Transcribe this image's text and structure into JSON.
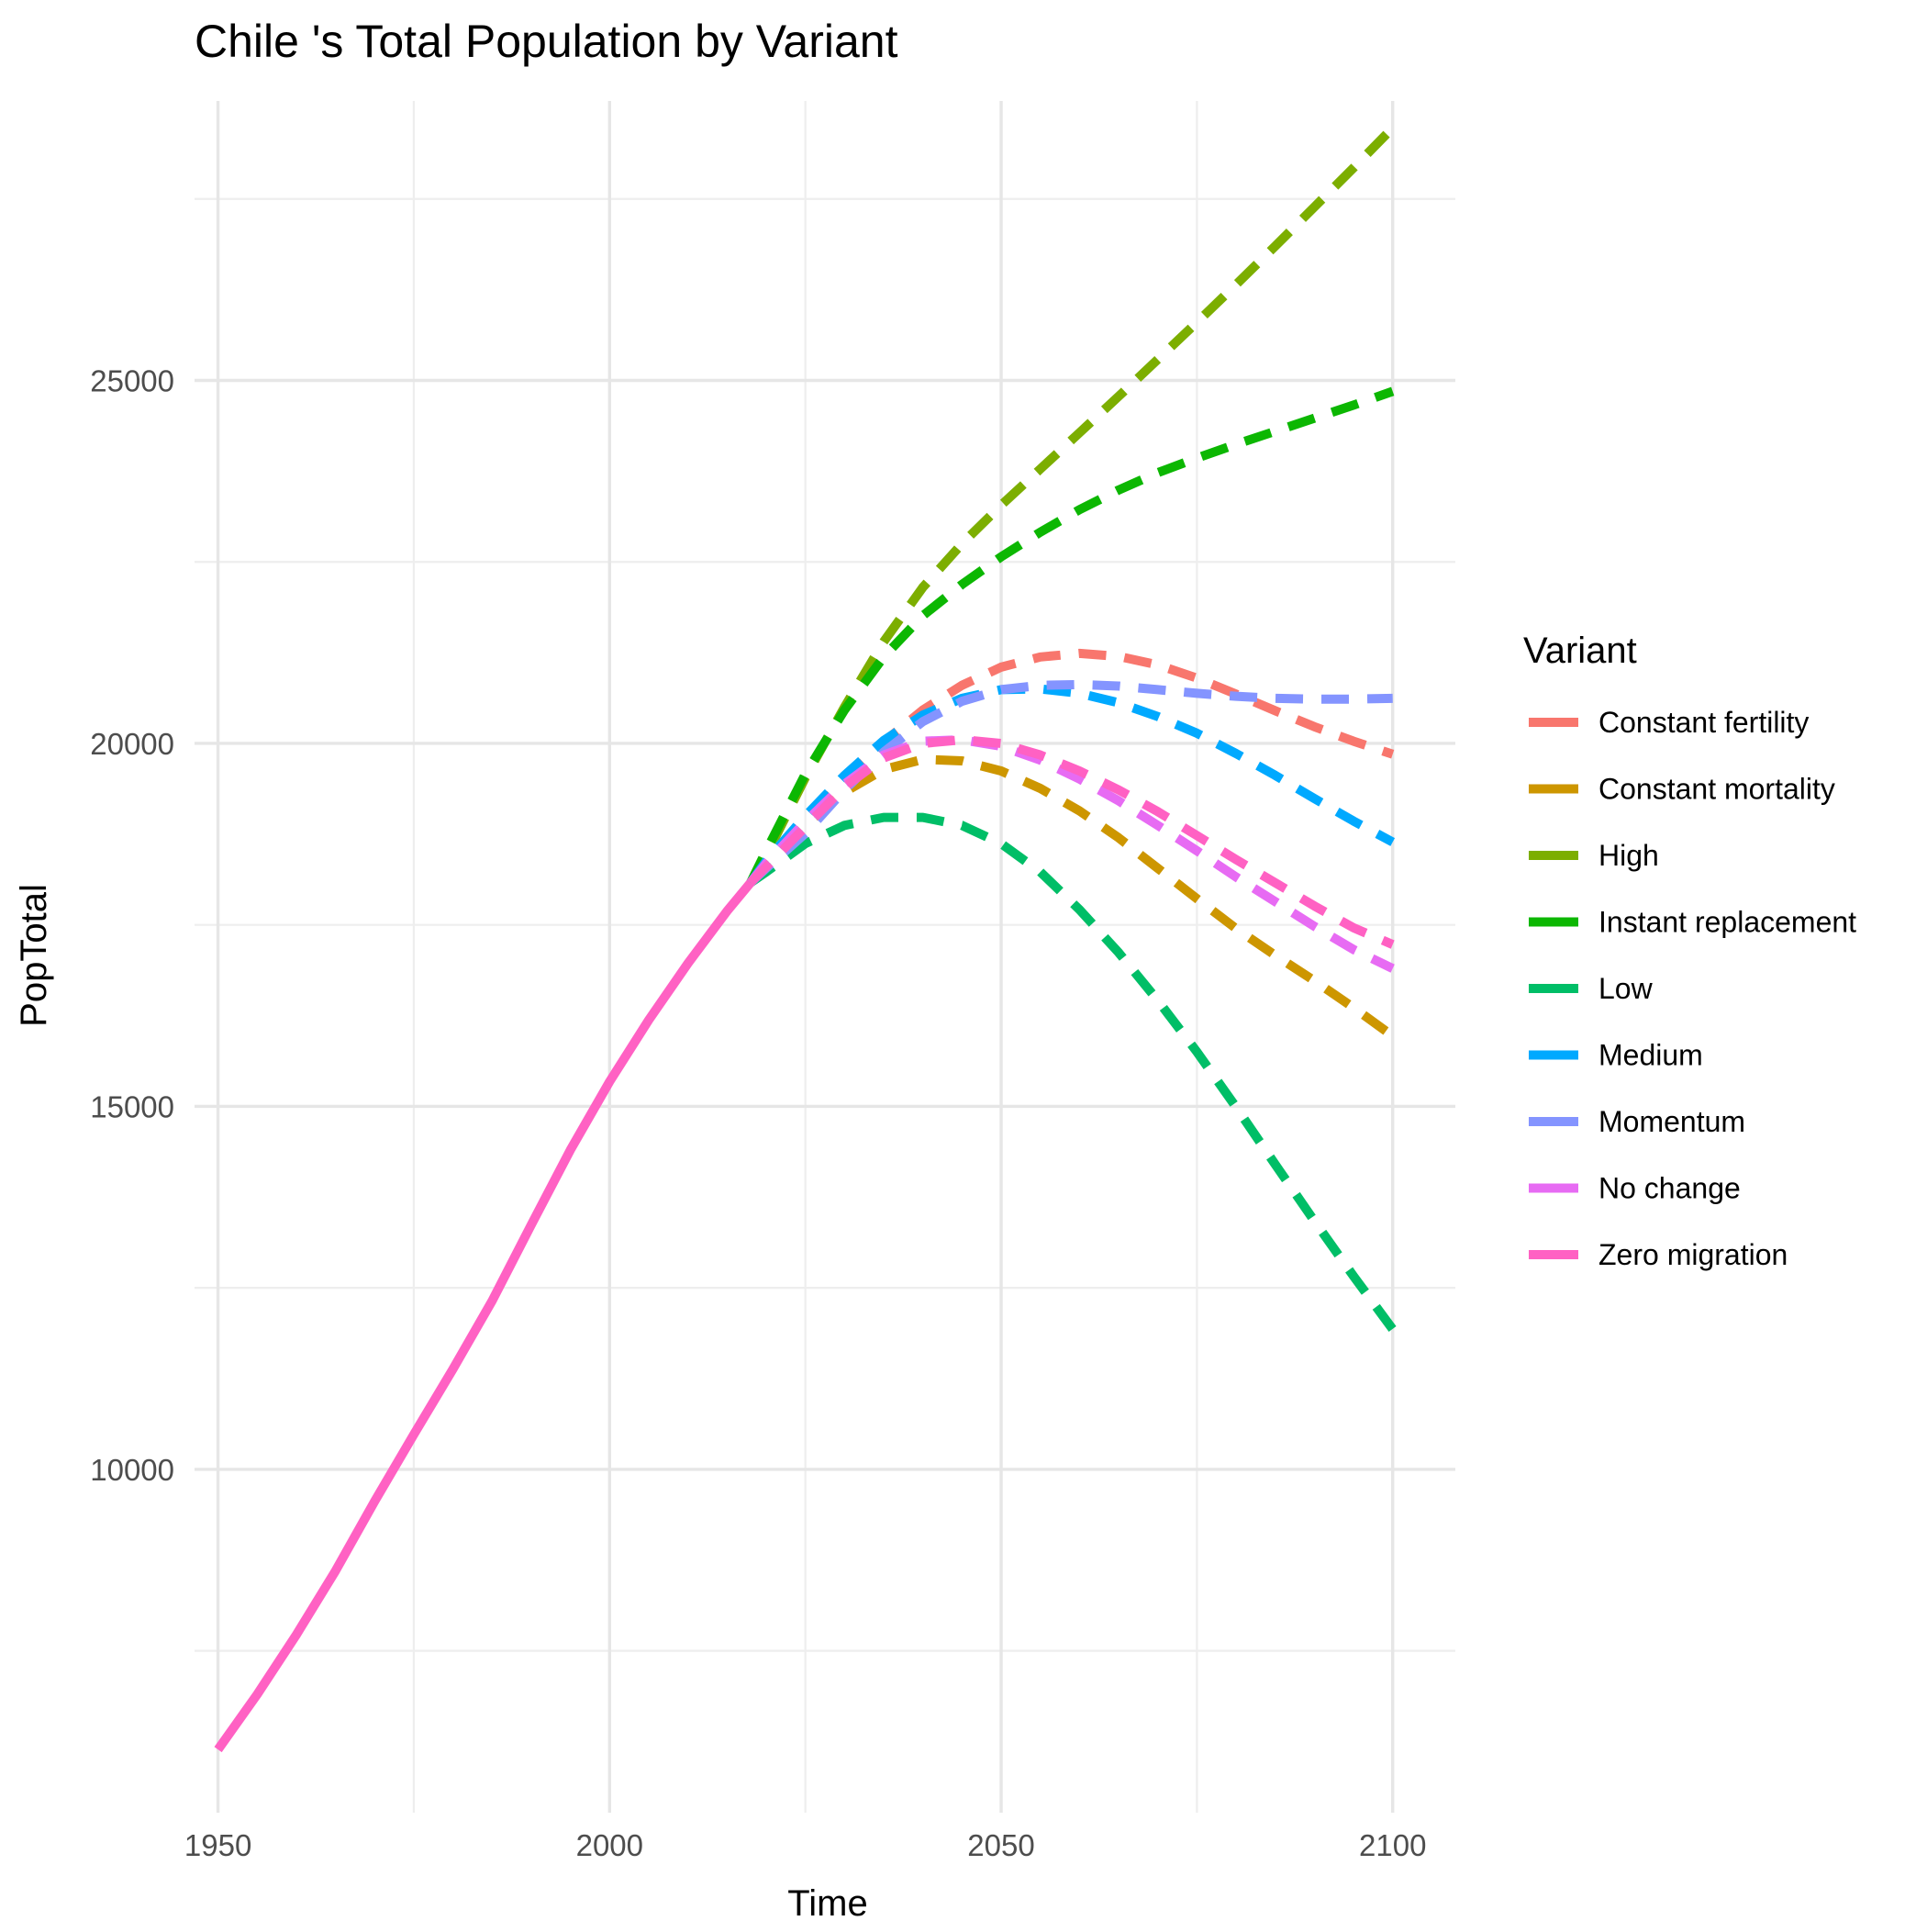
{
  "chart_data": {
    "type": "line",
    "title": "Chile 's Total Population by Variant",
    "xlabel": "Time",
    "ylabel": "PopTotal",
    "xlim": [
      1947,
      2108
    ],
    "ylim": [
      5270,
      28850
    ],
    "x_ticks": [
      1950,
      2000,
      2050,
      2100
    ],
    "x_tick_labels": [
      "1950",
      "2000",
      "2050",
      "2100"
    ],
    "y_ticks": [
      10000,
      15000,
      20000,
      25000
    ],
    "y_tick_labels": [
      "10000",
      "15000",
      "20000",
      "25000"
    ],
    "grid": true,
    "legend": {
      "title": "Variant",
      "position": "right"
    },
    "historical_color": "#FF61C3",
    "historical": {
      "x": [
        1950,
        1955,
        1960,
        1965,
        1970,
        1975,
        1980,
        1985,
        1990,
        1995,
        2000,
        2005,
        2010,
        2015,
        2018
      ],
      "y": [
        6140,
        6900,
        7720,
        8600,
        9560,
        10480,
        11380,
        12320,
        13370,
        14400,
        15340,
        16190,
        16970,
        17690,
        18080
      ]
    },
    "series": [
      {
        "name": "Constant fertility",
        "color": "#F8766D",
        "x": [
          2018,
          2020,
          2025,
          2030,
          2035,
          2040,
          2045,
          2050,
          2055,
          2060,
          2065,
          2070,
          2075,
          2080,
          2085,
          2090,
          2095,
          2100
        ],
        "y": [
          18080,
          18350,
          18950,
          19500,
          20020,
          20460,
          20800,
          21050,
          21190,
          21240,
          21200,
          21080,
          20900,
          20680,
          20450,
          20230,
          20030,
          19850
        ]
      },
      {
        "name": "Constant mortality",
        "color": "#CD9600",
        "x": [
          2018,
          2020,
          2025,
          2030,
          2035,
          2040,
          2045,
          2050,
          2055,
          2060,
          2065,
          2070,
          2075,
          2080,
          2085,
          2090,
          2095,
          2100
        ],
        "y": [
          18080,
          18320,
          18880,
          19330,
          19640,
          19780,
          19760,
          19620,
          19380,
          19070,
          18700,
          18280,
          17860,
          17450,
          17080,
          16730,
          16360,
          15970
        ]
      },
      {
        "name": "High",
        "color": "#7CAE00",
        "x": [
          2018,
          2020,
          2025,
          2030,
          2035,
          2040,
          2045,
          2050,
          2055,
          2060,
          2065,
          2070,
          2075,
          2080,
          2085,
          2090,
          2095,
          2100
        ],
        "y": [
          18080,
          18460,
          19530,
          20500,
          21400,
          22150,
          22750,
          23280,
          23780,
          24280,
          24780,
          25290,
          25800,
          26320,
          26850,
          27390,
          27930,
          28480
        ]
      },
      {
        "name": "Instant replacement",
        "color": "#0CB702",
        "x": [
          2018,
          2020,
          2025,
          2030,
          2035,
          2040,
          2045,
          2050,
          2055,
          2060,
          2065,
          2070,
          2075,
          2080,
          2085,
          2090,
          2095,
          2100
        ],
        "y": [
          18080,
          18520,
          19580,
          20460,
          21190,
          21760,
          22190,
          22570,
          22910,
          23220,
          23490,
          23730,
          23930,
          24120,
          24300,
          24480,
          24660,
          24850
        ]
      },
      {
        "name": "Low",
        "color": "#00BE67",
        "x": [
          2018,
          2020,
          2025,
          2030,
          2035,
          2040,
          2045,
          2050,
          2055,
          2060,
          2065,
          2070,
          2075,
          2080,
          2085,
          2090,
          2095,
          2100
        ],
        "y": [
          18080,
          18230,
          18620,
          18870,
          18980,
          18980,
          18870,
          18620,
          18230,
          17710,
          17120,
          16460,
          15750,
          14990,
          14200,
          13420,
          12660,
          11930
        ]
      },
      {
        "name": "Medium",
        "color": "#00A9FF",
        "x": [
          2018,
          2020,
          2025,
          2030,
          2035,
          2040,
          2045,
          2050,
          2055,
          2060,
          2065,
          2070,
          2075,
          2080,
          2085,
          2090,
          2095,
          2100
        ],
        "y": [
          18080,
          18380,
          19000,
          19560,
          20040,
          20390,
          20620,
          20740,
          20750,
          20690,
          20560,
          20370,
          20140,
          19860,
          19560,
          19240,
          18930,
          18640
        ]
      },
      {
        "name": "Momentum",
        "color": "#8494FF",
        "x": [
          2018,
          2020,
          2025,
          2030,
          2035,
          2040,
          2045,
          2050,
          2055,
          2060,
          2065,
          2070,
          2075,
          2080,
          2085,
          2090,
          2095,
          2100
        ],
        "y": [
          18080,
          18280,
          18760,
          19360,
          19880,
          20300,
          20580,
          20740,
          20800,
          20810,
          20790,
          20740,
          20690,
          20650,
          20620,
          20610,
          20610,
          20620
        ]
      },
      {
        "name": "No change",
        "color": "#E76BF3",
        "x": [
          2018,
          2020,
          2025,
          2030,
          2035,
          2040,
          2045,
          2050,
          2055,
          2060,
          2065,
          2070,
          2075,
          2080,
          2085,
          2090,
          2095,
          2100
        ],
        "y": [
          18080,
          18350,
          18920,
          19440,
          19840,
          20030,
          20050,
          19960,
          19770,
          19510,
          19210,
          18870,
          18520,
          18160,
          17820,
          17480,
          17160,
          16900
        ]
      },
      {
        "name": "Zero migration",
        "color": "#FF61C3",
        "x": [
          2018,
          2020,
          2025,
          2030,
          2035,
          2040,
          2045,
          2050,
          2055,
          2060,
          2065,
          2070,
          2075,
          2080,
          2085,
          2090,
          2095,
          2100
        ],
        "y": [
          18080,
          18300,
          18850,
          19400,
          19800,
          20000,
          20050,
          20000,
          19840,
          19620,
          19360,
          19060,
          18730,
          18400,
          18080,
          17760,
          17460,
          17230
        ]
      }
    ]
  }
}
